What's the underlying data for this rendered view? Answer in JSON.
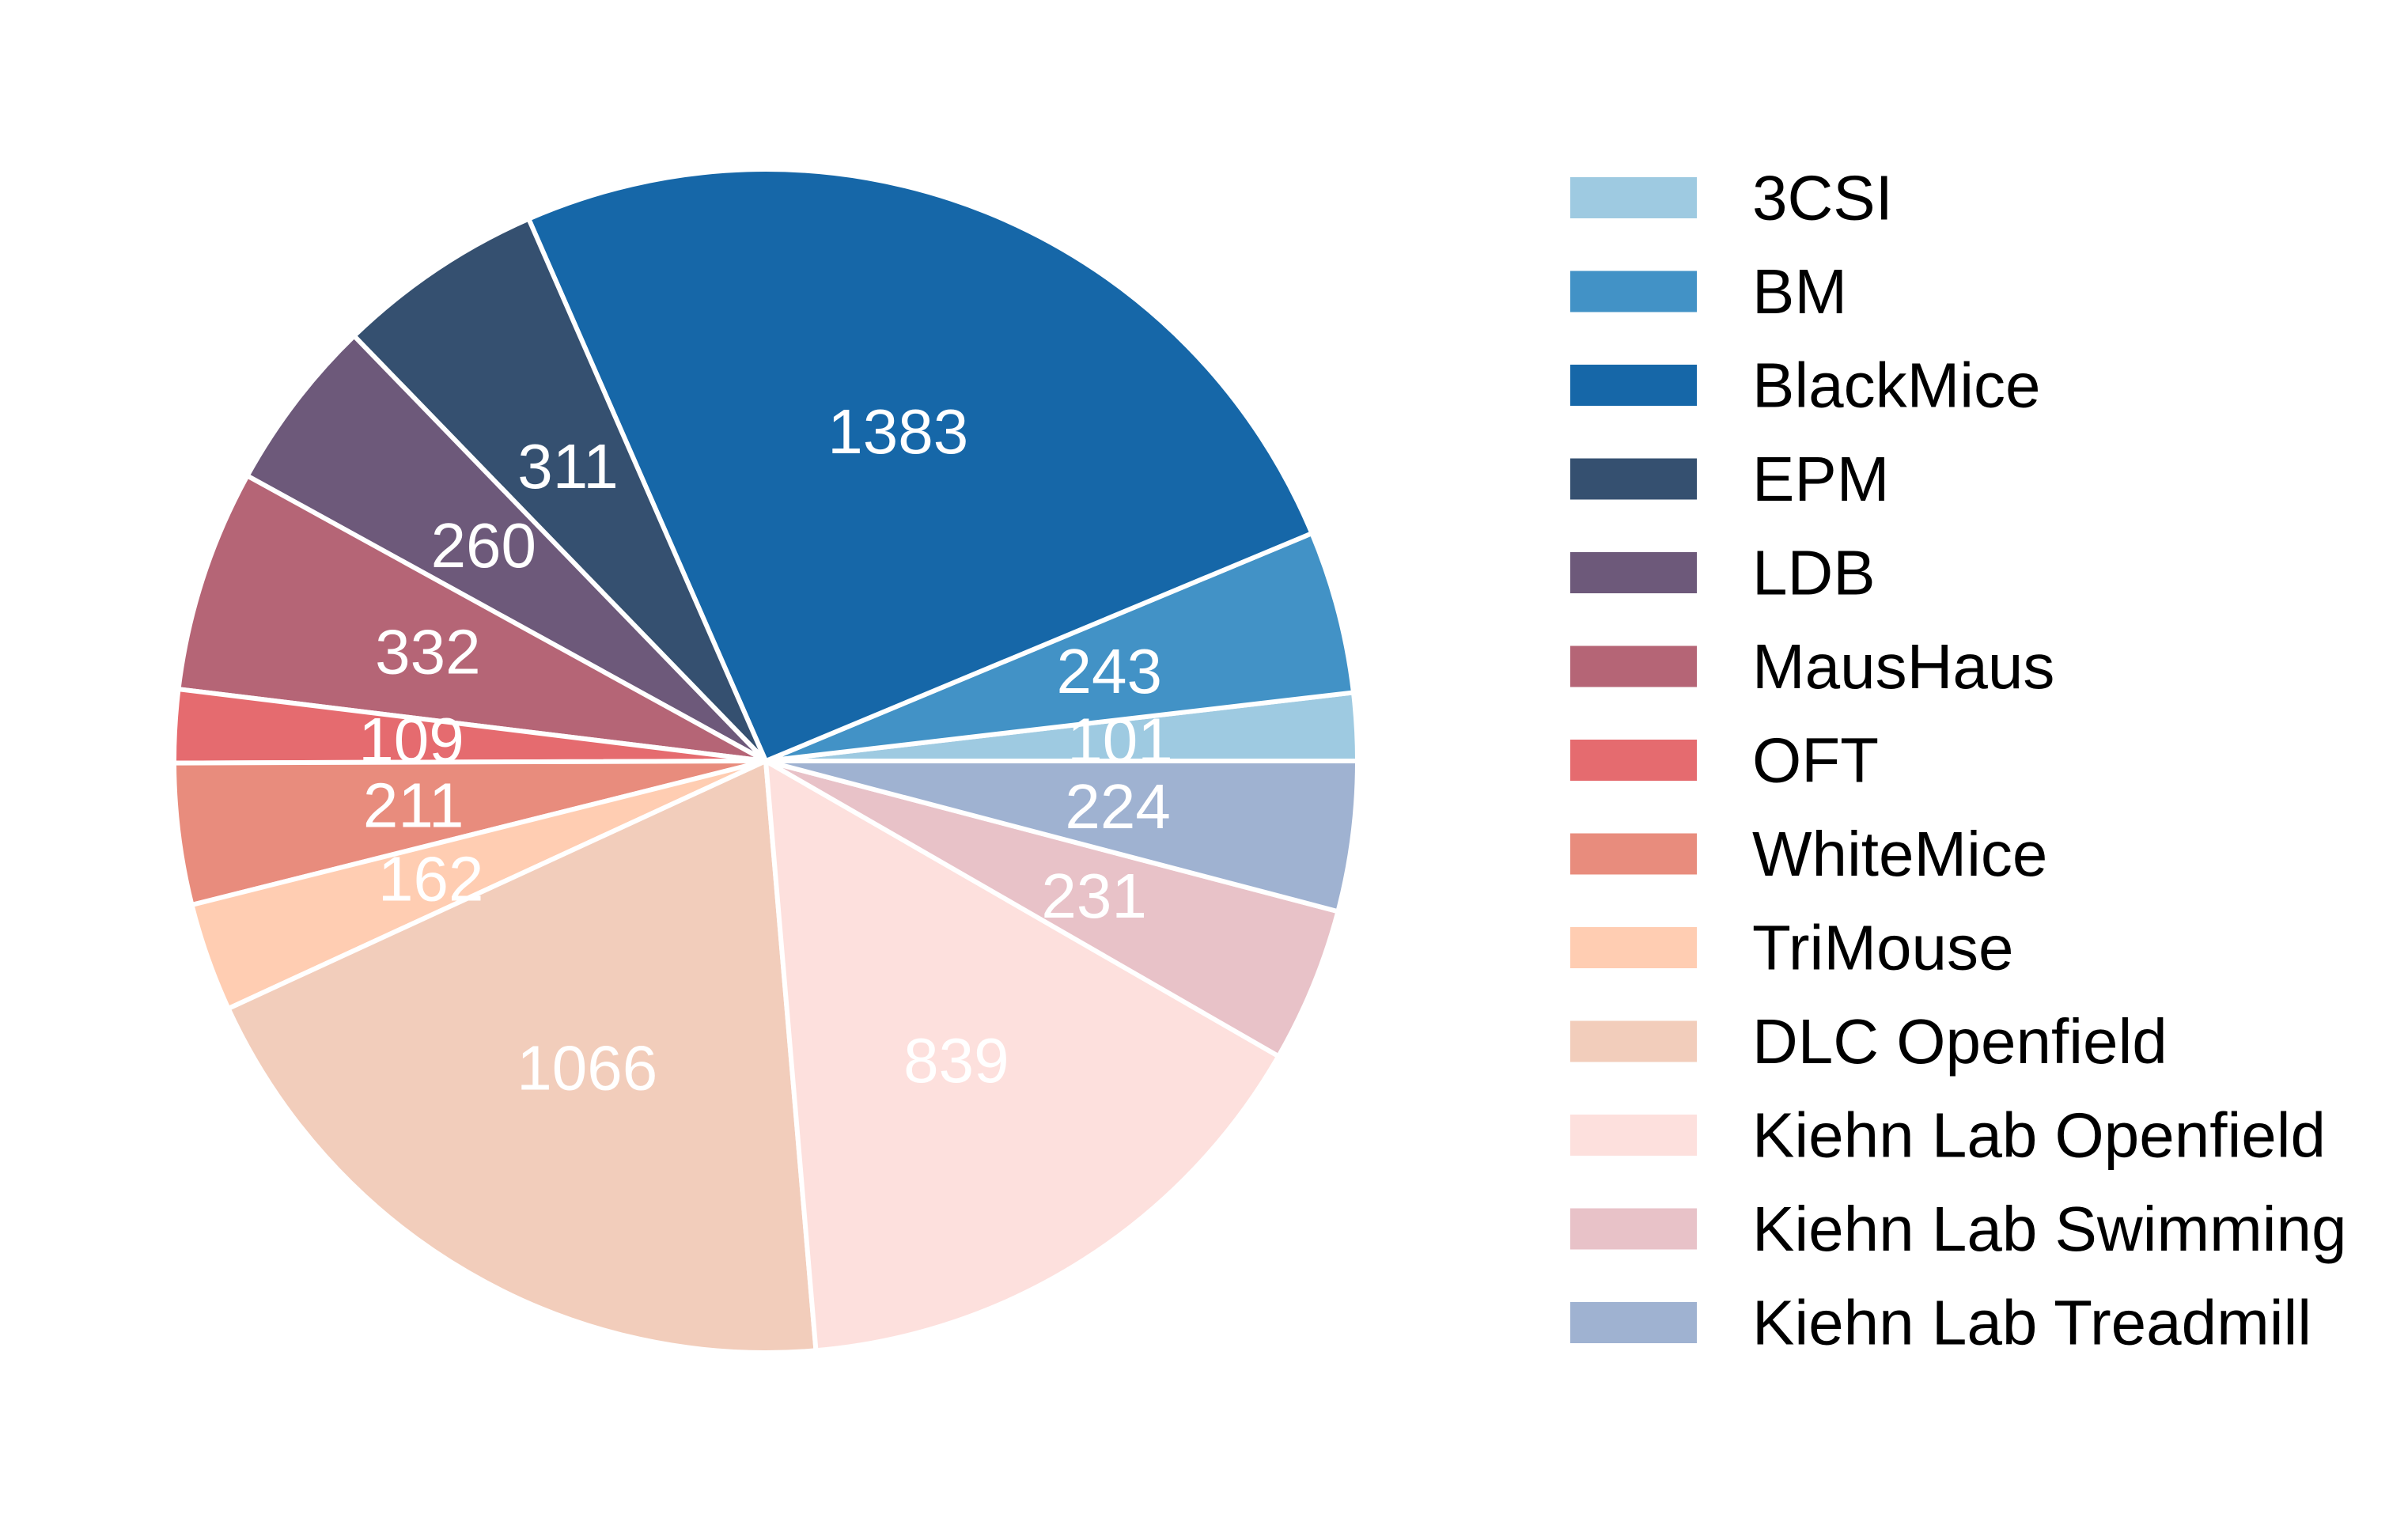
{
  "chart_data": {
    "type": "pie",
    "title": "",
    "start_angle_deg": 0,
    "direction": "counterclockwise",
    "slice_edge_color": "#ffffff",
    "label_color": "#ffffff",
    "legend_position": "right",
    "slices": [
      {
        "label": "3CSI",
        "value": 101,
        "color": "#9ecae1"
      },
      {
        "label": "BM",
        "value": 243,
        "color": "#4292c6"
      },
      {
        "label": "BlackMice",
        "value": 1383,
        "color": "#1667a8"
      },
      {
        "label": "EPM",
        "value": 311,
        "color": "#355070"
      },
      {
        "label": "LDB",
        "value": 260,
        "color": "#6d597a"
      },
      {
        "label": "MausHaus",
        "value": 332,
        "color": "#b56576"
      },
      {
        "label": "OFT",
        "value": 109,
        "color": "#e56b6f"
      },
      {
        "label": "WhiteMice",
        "value": 211,
        "color": "#e88c7d"
      },
      {
        "label": "TriMouse",
        "value": 162,
        "color": "#ffcdb2"
      },
      {
        "label": "DLC Openfield",
        "value": 1066,
        "color": "#f2cdbb"
      },
      {
        "label": "Kiehn Lab Openfield",
        "value": 839,
        "color": "#fde0dd"
      },
      {
        "label": "Kiehn Lab Swimming",
        "value": 231,
        "color": "#e8c2c8"
      },
      {
        "label": "Kiehn Lab Treadmill",
        "value": 224,
        "color": "#9fb2d1"
      }
    ]
  }
}
